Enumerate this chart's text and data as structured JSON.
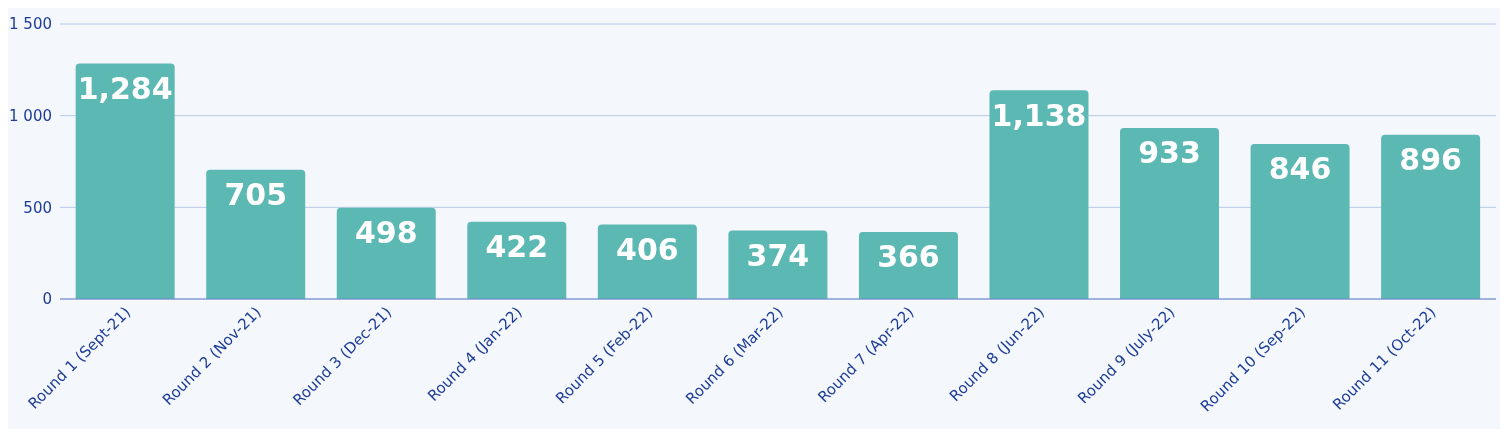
{
  "chart_data": {
    "type": "bar",
    "categories": [
      "Round 1 (Sept-21)",
      "Round 2 (Nov-21)",
      "Round 3 (Dec-21)",
      "Round 4 (Jan-22)",
      "Round 5 (Feb-22)",
      "Round 6 (Mar-22)",
      "Round 7 (Apr-22)",
      "Round 8 (Jun-22)",
      "Round 9 (July-22)",
      "Round 10 (Sep-22)",
      "Round 11 (Oct-22)"
    ],
    "values": [
      1284,
      705,
      498,
      422,
      406,
      374,
      366,
      1138,
      933,
      846,
      896
    ],
    "value_labels": [
      "1,284",
      "705",
      "498",
      "422",
      "406",
      "374",
      "366",
      "1,138",
      "933",
      "846",
      "896"
    ],
    "color": "#5cb8b2",
    "ylim": [
      0,
      1500
    ],
    "yticks": [
      0,
      500,
      {
        "value": 1000,
        "label": "1 000"
      },
      {
        "value": 1500,
        "label": "1 500"
      }
    ],
    "grid": "y",
    "legend": false
  }
}
